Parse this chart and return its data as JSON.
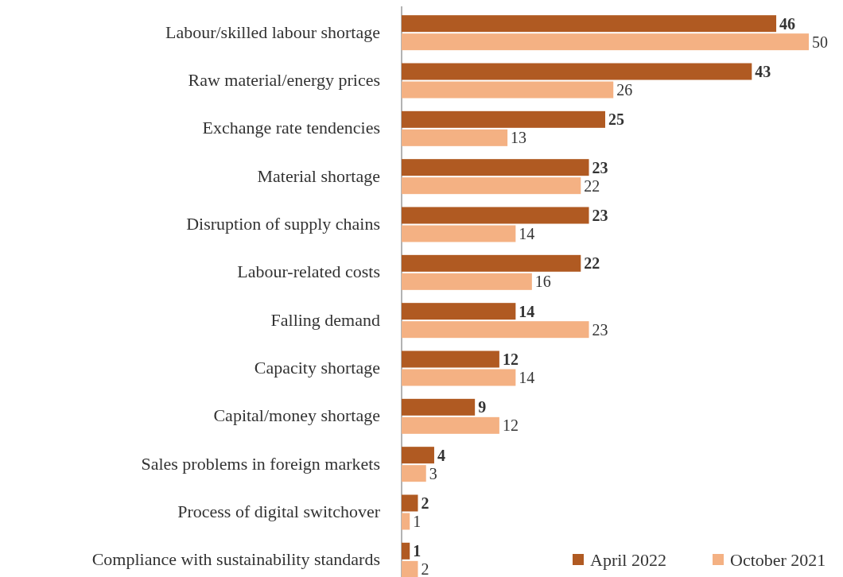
{
  "chart_data": {
    "type": "bar",
    "orientation": "horizontal",
    "categories": [
      "Labour/skilled labour shortage",
      "Raw material/energy prices",
      "Exchange rate tendencies",
      "Material shortage",
      "Disruption of supply chains",
      "Labour-related costs",
      "Falling demand",
      "Capacity shortage",
      "Capital/money shortage",
      "Sales problems in foreign markets",
      "Process of digital switchover",
      "Compliance with sustainability standards"
    ],
    "series": [
      {
        "name": "April 2022",
        "color": "#b05a22",
        "values": [
          46,
          43,
          25,
          23,
          23,
          22,
          14,
          12,
          9,
          4,
          2,
          1
        ]
      },
      {
        "name": "October 2021",
        "color": "#f4b183",
        "values": [
          50,
          26,
          13,
          22,
          14,
          16,
          23,
          14,
          12,
          3,
          1,
          2
        ]
      }
    ],
    "data_labels": true,
    "legend": "bottom right"
  }
}
